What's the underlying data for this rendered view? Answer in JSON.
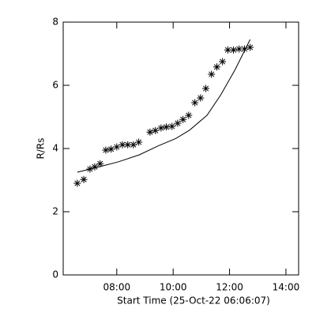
{
  "chart_data": {
    "type": "scatter",
    "xlabel": "Start Time (25-Oct-22 06:06:07)",
    "ylabel": "R/Rs",
    "xlim": [
      6.1,
      14.45
    ],
    "ylim": [
      0,
      8
    ],
    "xticks": [
      {
        "value": 8,
        "label": "08:00"
      },
      {
        "value": 10,
        "label": "10:00"
      },
      {
        "value": 12,
        "label": "12:00"
      },
      {
        "value": 14,
        "label": "14:00"
      }
    ],
    "yticks": [
      0,
      2,
      4,
      6,
      8
    ],
    "series": [
      {
        "mark": "asterisk",
        "color": "#000000",
        "x": [
          6.6,
          6.83,
          7.05,
          7.22,
          7.41,
          7.61,
          7.8,
          8.0,
          8.2,
          8.39,
          8.59,
          8.78,
          9.18,
          9.37,
          9.57,
          9.76,
          9.96,
          10.16,
          10.35,
          10.55,
          10.77,
          10.97,
          11.16,
          11.36,
          11.55,
          11.75,
          11.94,
          12.14,
          12.34,
          12.53,
          12.73
        ],
        "values": [
          2.9,
          3.02,
          3.35,
          3.42,
          3.52,
          3.95,
          3.98,
          4.05,
          4.12,
          4.12,
          4.12,
          4.2,
          4.52,
          4.57,
          4.65,
          4.68,
          4.7,
          4.8,
          4.92,
          5.05,
          5.45,
          5.6,
          5.9,
          6.35,
          6.58,
          6.75,
          7.12,
          7.12,
          7.15,
          7.15,
          7.2
        ]
      },
      {
        "mark": "line",
        "color": "#000000",
        "x": [
          6.6,
          7.5,
          8.06,
          8.8,
          9.46,
          10.1,
          10.58,
          11.2,
          11.69,
          12.2,
          12.73
        ],
        "values": [
          3.25,
          3.45,
          3.58,
          3.8,
          4.08,
          4.32,
          4.58,
          5.05,
          5.7,
          6.5,
          7.45
        ]
      }
    ]
  }
}
